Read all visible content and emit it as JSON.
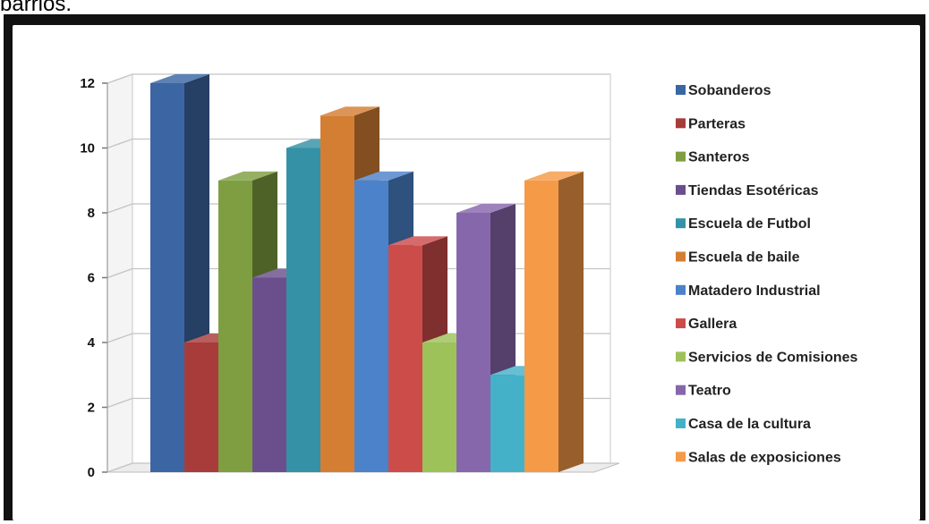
{
  "caption": "barrios.",
  "chart_data": {
    "type": "bar",
    "title": "",
    "xlabel": "",
    "ylabel": "",
    "ylim": [
      0,
      12
    ],
    "yticks": [
      0,
      2,
      4,
      6,
      8,
      10,
      12
    ],
    "grid": true,
    "legend_position": "right",
    "series": [
      {
        "name": "Sobanderos",
        "value": 12,
        "color": "#3b66a3"
      },
      {
        "name": "Parteras",
        "value": 4,
        "color": "#a83c3a"
      },
      {
        "name": "Santeros",
        "value": 9,
        "color": "#7e9e41"
      },
      {
        "name": "Tiendas Esotéricas",
        "value": 6,
        "color": "#6a4f8c"
      },
      {
        "name": "Escuela de Futbol",
        "value": 10,
        "color": "#3591a6"
      },
      {
        "name": "Escuela de baile",
        "value": 11,
        "color": "#d47e34"
      },
      {
        "name": "Matadero Industrial",
        "value": 9,
        "color": "#4c82c9"
      },
      {
        "name": "Gallera",
        "value": 7,
        "color": "#cc4c4a"
      },
      {
        "name": "Servicios de Comisiones",
        "value": 4,
        "color": "#9dc25a"
      },
      {
        "name": "Teatro",
        "value": 8,
        "color": "#8767ac"
      },
      {
        "name": "Casa de la cultura",
        "value": 3,
        "color": "#45b1c9"
      },
      {
        "name": "Salas de exposiciones",
        "value": 9,
        "color": "#f59a47"
      }
    ]
  }
}
